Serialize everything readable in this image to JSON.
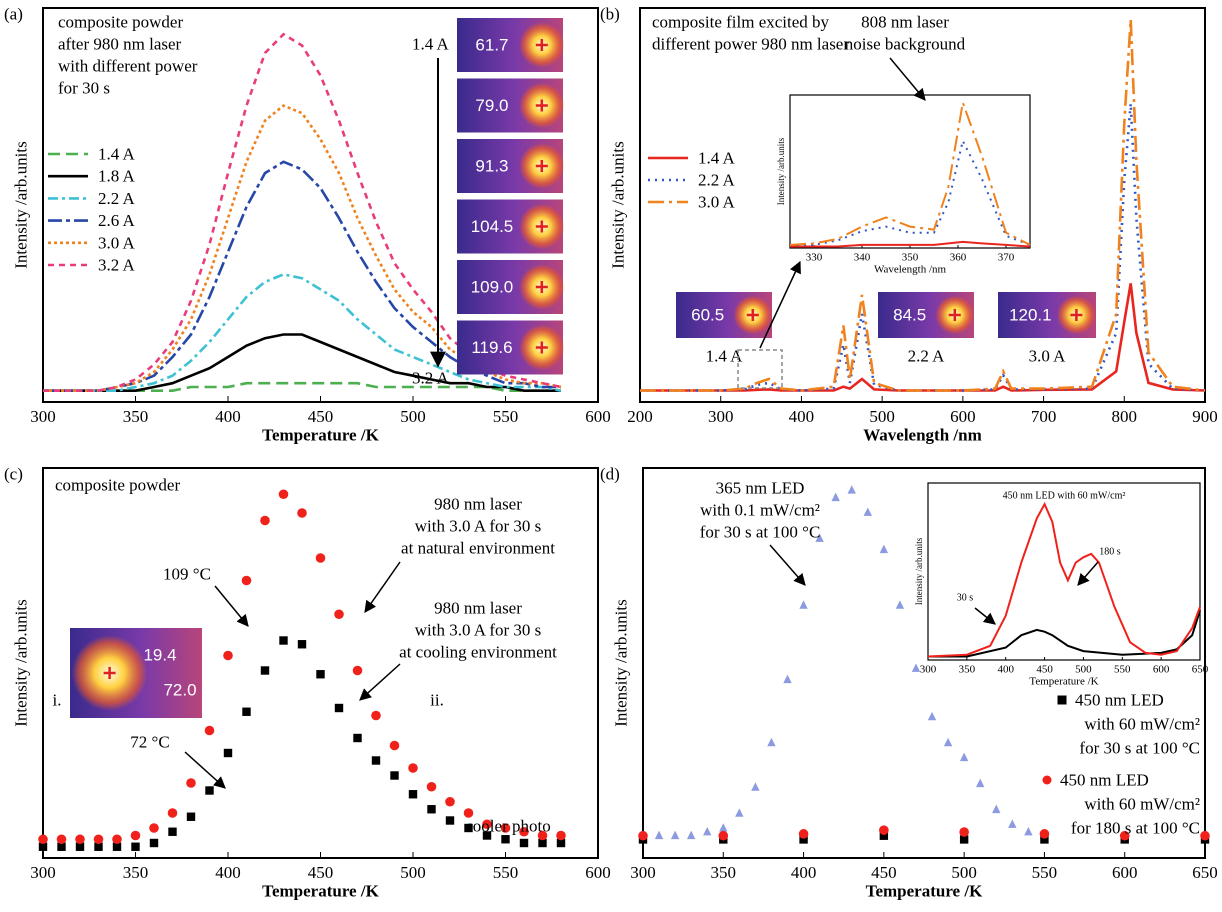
{
  "chart_data": [
    {
      "type": "line",
      "panel_label": "(a)",
      "xlabel": "Temperature /K",
      "ylabel": "Intensity /arb.units",
      "xlim": [
        300,
        600
      ],
      "xticks": [
        300,
        350,
        400,
        450,
        500,
        550,
        600
      ],
      "ylim": [
        -3,
        102
      ],
      "x": [
        300,
        310,
        320,
        330,
        340,
        350,
        360,
        370,
        380,
        390,
        400,
        410,
        420,
        430,
        440,
        450,
        460,
        470,
        480,
        490,
        500,
        510,
        520,
        530,
        540,
        550,
        560,
        570,
        580
      ],
      "series": [
        {
          "name": "1.4 A",
          "color": "#4caf50",
          "dash": "12 6",
          "values": [
            0,
            0,
            0,
            0,
            0,
            0,
            0,
            0,
            1,
            1,
            1,
            2,
            2,
            2,
            2,
            2,
            2,
            2,
            1,
            1,
            1,
            1,
            1,
            1,
            1,
            0,
            0,
            0,
            0
          ]
        },
        {
          "name": "1.8 A",
          "color": "#000000",
          "dash": "",
          "values": [
            0,
            0,
            0,
            0,
            0,
            0,
            1,
            2,
            4,
            6,
            9,
            12,
            14,
            15,
            15,
            13,
            11,
            9,
            7,
            5,
            4,
            3,
            2,
            2,
            1,
            1,
            0,
            0,
            0
          ]
        },
        {
          "name": "2.2 A",
          "color": "#3ec1d3",
          "dash": "10 4 3 4",
          "values": [
            0,
            0,
            0,
            0,
            0,
            1,
            2,
            4,
            8,
            13,
            19,
            25,
            29,
            31,
            30,
            27,
            24,
            19,
            15,
            11,
            9,
            7,
            5,
            3,
            2,
            1,
            1,
            1,
            0
          ]
        },
        {
          "name": "2.6 A",
          "color": "#2747a8",
          "dash": "14 4 4 4",
          "values": [
            0,
            0,
            0,
            0,
            1,
            2,
            4,
            9,
            15,
            25,
            37,
            49,
            58,
            61,
            59,
            54,
            46,
            37,
            29,
            22,
            17,
            13,
            9,
            6,
            4,
            2,
            2,
            1,
            1
          ]
        },
        {
          "name": "3.0 A",
          "color": "#f0821e",
          "dash": "3 3",
          "values": [
            0,
            0,
            0,
            0,
            1,
            2,
            5,
            11,
            19,
            31,
            46,
            61,
            72,
            76,
            74,
            67,
            58,
            46,
            36,
            27,
            21,
            17,
            11,
            8,
            5,
            3,
            2,
            2,
            1
          ]
        },
        {
          "name": "3.2 A",
          "color": "#e83c7c",
          "dash": "6 5",
          "values": [
            0,
            0,
            0,
            0,
            1,
            3,
            7,
            13,
            24,
            39,
            58,
            76,
            90,
            95,
            92,
            84,
            72,
            58,
            45,
            34,
            27,
            21,
            14,
            10,
            6,
            4,
            3,
            2,
            1
          ]
        }
      ],
      "annotations": [
        "composite powder",
        "after 980 nm laser",
        "with different power",
        "for 30 s",
        "1.4 A",
        "3.2 A"
      ],
      "images": [
        {
          "reading": "61.7"
        },
        {
          "reading": "79.0"
        },
        {
          "reading": "91.3"
        },
        {
          "reading": "104.5"
        },
        {
          "reading": "109.0"
        },
        {
          "reading": "119.6"
        }
      ]
    },
    {
      "type": "line",
      "panel_label": "(b)",
      "xlabel": "Wavelength /nm",
      "ylabel": "Intensity /arb.units",
      "xlim": [
        200,
        900
      ],
      "xticks": [
        200,
        300,
        400,
        500,
        600,
        700,
        800,
        900
      ],
      "ylim": [
        -3,
        100
      ],
      "x": [
        200,
        300,
        330,
        345,
        360,
        375,
        400,
        440,
        452,
        460,
        475,
        490,
        520,
        600,
        640,
        650,
        660,
        700,
        760,
        790,
        800,
        808,
        815,
        830,
        860,
        900
      ],
      "series": [
        {
          "name": "1.4 A",
          "color": "#e8261f",
          "dash": "",
          "values": [
            0,
            0,
            0,
            0.2,
            0.3,
            0,
            0,
            0,
            1,
            0.5,
            3,
            0.3,
            0,
            0,
            0,
            1,
            0,
            0.2,
            0.3,
            5,
            18,
            28,
            15,
            2,
            0.3,
            0
          ]
        },
        {
          "name": "2.2 A",
          "color": "#2f56c8",
          "dash": "2 5",
          "values": [
            0,
            0,
            0.3,
            1.5,
            2,
            0.3,
            0,
            0.5,
            12,
            2,
            20,
            1.5,
            0,
            0,
            0.3,
            4,
            0.3,
            0.3,
            0.5,
            15,
            55,
            75,
            45,
            7,
            0.5,
            0
          ]
        },
        {
          "name": "3.0 A",
          "color": "#f0821e",
          "dash": "16 5 3 5",
          "values": [
            0,
            0,
            0.5,
            2,
            3,
            0.5,
            0,
            1,
            17,
            3,
            25,
            2,
            0,
            0,
            0.5,
            5,
            0.5,
            0.5,
            1,
            20,
            70,
            97,
            60,
            10,
            1,
            0
          ]
        }
      ],
      "annotations": [
        "composite film excited by",
        "different power 980 nm laser",
        "808 nm laser",
        "noise background"
      ],
      "images": [
        {
          "reading": "60.5",
          "caption": "1.4 A"
        },
        {
          "reading": "84.5",
          "caption": "2.2 A"
        },
        {
          "reading": "120.1",
          "caption": "3.0 A"
        }
      ],
      "inset": {
        "type": "line",
        "xlabel": "Wavelength /nm",
        "ylabel": "Intensity /arb.units",
        "xlim": [
          325,
          375
        ],
        "xticks": [
          330,
          340,
          350,
          360,
          370
        ],
        "ylim": [
          0,
          100
        ],
        "x": [
          325,
          330,
          335,
          340,
          345,
          350,
          355,
          358,
          361,
          365,
          370,
          375
        ],
        "series": [
          {
            "color": "#e8261f",
            "dash": "",
            "values": [
              1,
              1,
              1,
              2,
              2,
              2,
              2,
              3,
              4,
              3,
              2,
              1
            ]
          },
          {
            "color": "#2f56c8",
            "dash": "2 5",
            "values": [
              2,
              2,
              5,
              11,
              14,
              10,
              10,
              30,
              70,
              45,
              8,
              2
            ]
          },
          {
            "color": "#f0821e",
            "dash": "16 5 3 5",
            "values": [
              2,
              3,
              6,
              14,
              20,
              14,
              12,
              40,
              95,
              60,
              10,
              2
            ]
          }
        ]
      }
    },
    {
      "type": "scatter",
      "panel_label": "(c)",
      "xlabel": "Temperature /K",
      "ylabel": "Intensity /arb.units",
      "xlim": [
        300,
        600
      ],
      "xticks": [
        300,
        350,
        400,
        450,
        500,
        550,
        600
      ],
      "ylim": [
        -2,
        102
      ],
      "x": [
        300,
        310,
        320,
        330,
        340,
        350,
        360,
        370,
        380,
        390,
        400,
        410,
        420,
        430,
        440,
        450,
        460,
        470,
        480,
        490,
        500,
        510,
        520,
        530,
        540,
        550,
        560,
        570,
        580
      ],
      "series": [
        {
          "color": "#000000",
          "marker": "square",
          "values": [
            1,
            1,
            1,
            1,
            1,
            1,
            2,
            5,
            9,
            16,
            26,
            37,
            48,
            56,
            55,
            47,
            38,
            30,
            24,
            20,
            15,
            11,
            8,
            6,
            4,
            3,
            2,
            2,
            2
          ]
        },
        {
          "color": "#f0211b",
          "marker": "circle",
          "values": [
            3,
            3,
            3,
            3,
            3,
            4,
            6,
            10,
            18,
            32,
            52,
            72,
            88,
            95,
            90,
            78,
            63,
            48,
            36,
            28,
            22,
            17,
            13,
            10,
            7,
            6,
            5,
            4,
            4
          ]
        }
      ],
      "annotations": [
        "composite powder",
        "980 nm laser",
        "with 3.0 A for 30 s",
        "at natural environment",
        "109 °C",
        "980 nm laser",
        "with 3.0 A for 30 s",
        "at cooling environment",
        "i.",
        "72 °C",
        "ii.",
        "cooler photo"
      ],
      "images": [
        {
          "reading": "19.4"
        },
        {
          "reading": "72.0"
        }
      ]
    },
    {
      "type": "scatter",
      "panel_label": "(d)",
      "xlabel": "Temperature /K",
      "ylabel": "Intensity /arb.units",
      "xlim": [
        300,
        650
      ],
      "xticks": [
        300,
        350,
        400,
        450,
        500,
        550,
        600,
        650
      ],
      "ylim": [
        -3,
        102
      ],
      "series": [
        {
          "color": "#8c9ae0",
          "marker": "triangle",
          "x": [
            300,
            310,
            320,
            330,
            340,
            350,
            360,
            370,
            380,
            390,
            400,
            410,
            420,
            430,
            440,
            450,
            460,
            470,
            480,
            490,
            500,
            510,
            520,
            530,
            540,
            550
          ],
          "values": [
            3,
            3,
            3,
            3,
            4,
            5,
            9,
            16,
            28,
            45,
            65,
            83,
            94,
            96,
            90,
            80,
            65,
            48,
            35,
            28,
            24,
            17,
            10,
            6,
            4,
            3
          ]
        },
        {
          "name": "450 nm LED",
          "color": "#000000",
          "marker": "square",
          "x": [
            300,
            350,
            400,
            450,
            500,
            550,
            600,
            650
          ],
          "values": [
            2,
            2,
            2,
            3,
            2,
            2,
            2,
            2
          ]
        },
        {
          "name": "450 nm LED",
          "color": "#f0211b",
          "marker": "circle",
          "x": [
            300,
            350,
            400,
            450,
            500,
            550,
            600,
            650
          ],
          "values": [
            3,
            3,
            3.5,
            4.5,
            4,
            3.5,
            3,
            3
          ]
        }
      ],
      "annotations": [
        "365 nm LED",
        "with 0.1 mW/cm²",
        "for 30 s at 100 °C",
        "with 60 mW/cm²",
        "for 30 s at 100 °C",
        "with 60 mW/cm²",
        "for 180 s at 100 °C"
      ],
      "inset": {
        "type": "line",
        "title": "450 nm LED with 60 mW/cm²",
        "xlabel": "Temperature /K",
        "ylabel": "Intensity /arb.units",
        "xlim": [
          300,
          650
        ],
        "xticks": [
          300,
          350,
          400,
          450,
          500,
          550,
          600,
          650
        ],
        "ylim": [
          0,
          100
        ],
        "series": [
          {
            "color": "#000000",
            "dash": "",
            "x": [
              300,
              350,
              400,
              420,
              440,
              450,
              460,
              480,
              500,
              550,
              600,
              620,
              640,
              650
            ],
            "values": [
              2,
              2,
              7,
              14,
              17,
              16,
              14,
              8,
              5,
              3,
              4,
              6,
              14,
              28
            ]
          },
          {
            "color": "#f0211b",
            "dash": "",
            "x": [
              300,
              350,
              380,
              400,
              420,
              440,
              450,
              460,
              470,
              480,
              490,
              500,
              510,
              520,
              540,
              560,
              580,
              600,
              620,
              640,
              650
            ],
            "values": [
              2,
              3,
              8,
              25,
              55,
              80,
              88,
              78,
              55,
              45,
              55,
              58,
              60,
              55,
              30,
              10,
              4,
              3,
              5,
              18,
              30
            ]
          }
        ],
        "annotations": [
          "30 s",
          "180 s"
        ]
      }
    }
  ]
}
